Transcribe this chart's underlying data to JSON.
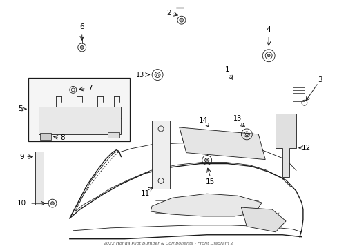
{
  "title": "2022 Honda Pilot Bumper & Components - Front Diagram 2",
  "background_color": "#ffffff",
  "line_color": "#1a1a1a",
  "fig_width": 4.89,
  "fig_height": 3.6,
  "dpi": 100
}
